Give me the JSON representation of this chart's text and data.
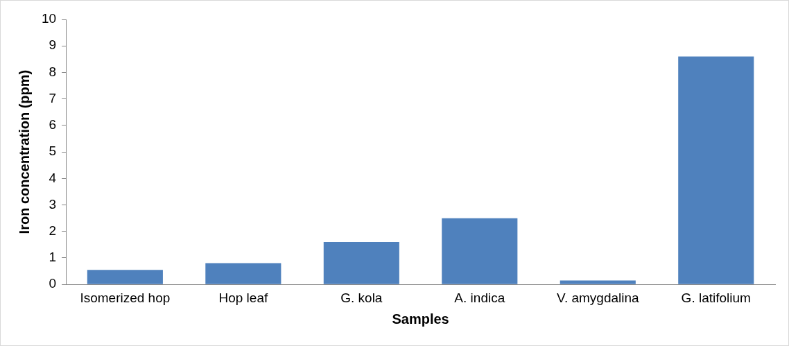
{
  "chart_data": {
    "type": "bar",
    "xlabel": "Samples",
    "ylabel": "Iron concentration (ppm)",
    "categories": [
      "Isomerized hop",
      "Hop leaf",
      "G. kola",
      "A. indica",
      "V. amygdalina",
      "G. latifolium"
    ],
    "values": [
      0.55,
      0.8,
      1.6,
      2.5,
      0.15,
      8.6
    ],
    "color": "#4f81bd",
    "ylim": [
      0,
      10
    ],
    "yticks": [
      0,
      1,
      2,
      3,
      4,
      5,
      6,
      7,
      8,
      9,
      10
    ],
    "grid": false,
    "legend": false
  }
}
